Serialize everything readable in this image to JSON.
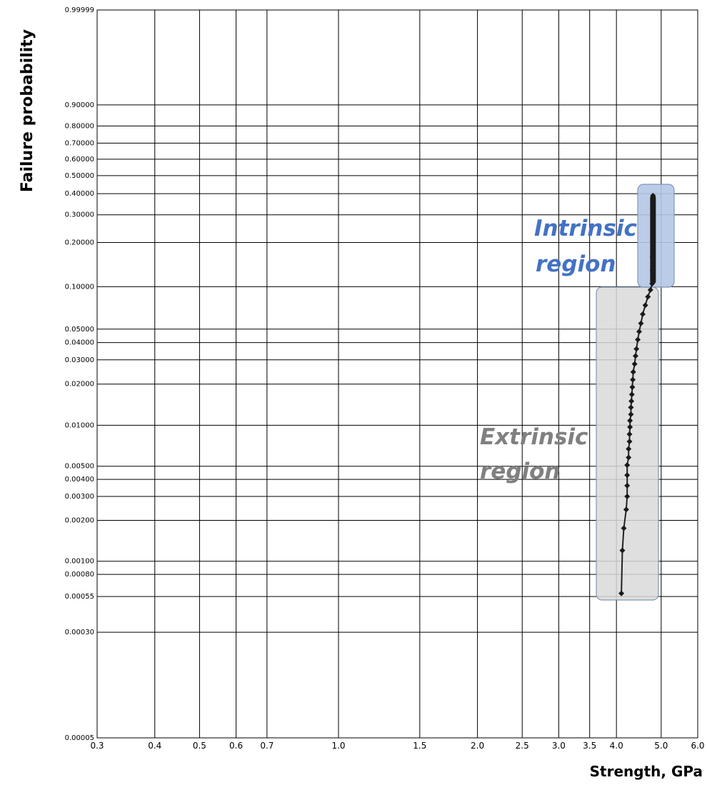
{
  "chart_data": {
    "type": "scatter",
    "xlabel": "Strength, GPa",
    "ylabel": "Failure probability",
    "x_scale": "log",
    "y_scale": "weibull",
    "xlim": [
      0.3,
      6.0
    ],
    "ylim": [
      5e-05,
      0.99999
    ],
    "grid": true,
    "x_ticks": [
      "0.3",
      "0.4",
      "0.5",
      "0.6",
      "0.7",
      "1.0",
      "1.5",
      "2.0",
      "2.5",
      "3.0",
      "3.5",
      "4.0",
      "5.0",
      "6.0"
    ],
    "y_ticks": [
      "0.99999",
      "0.90000",
      "0.80000",
      "0.70000",
      "0.60000",
      "0.50000",
      "0.40000",
      "0.30000",
      "0.20000",
      "0.10000",
      "0.05000",
      "0.04000",
      "0.03000",
      "0.02000",
      "0.01000",
      "0.00500",
      "0.00400",
      "0.00300",
      "0.00200",
      "0.00100",
      "0.00080",
      "0.00055",
      "0.00030",
      "0.00005"
    ],
    "series": [
      {
        "points": [
          [
            4.1,
            0.00058
          ],
          [
            4.12,
            0.0012
          ],
          [
            4.15,
            0.00175
          ],
          [
            4.2,
            0.0024
          ],
          [
            4.22,
            0.003
          ],
          [
            4.22,
            0.0036
          ],
          [
            4.22,
            0.0043
          ],
          [
            4.22,
            0.0051
          ],
          [
            4.25,
            0.0058
          ],
          [
            4.25,
            0.0067
          ],
          [
            4.27,
            0.0076
          ],
          [
            4.27,
            0.0086
          ],
          [
            4.28,
            0.0097
          ],
          [
            4.28,
            0.0108
          ],
          [
            4.3,
            0.012
          ],
          [
            4.3,
            0.0135
          ],
          [
            4.31,
            0.015
          ],
          [
            4.32,
            0.0168
          ],
          [
            4.33,
            0.019
          ],
          [
            4.34,
            0.0215
          ],
          [
            4.35,
            0.0245
          ],
          [
            4.38,
            0.028
          ],
          [
            4.4,
            0.032
          ],
          [
            4.42,
            0.036
          ],
          [
            4.45,
            0.042
          ],
          [
            4.48,
            0.048
          ],
          [
            4.52,
            0.055
          ],
          [
            4.56,
            0.064
          ],
          [
            4.62,
            0.074
          ],
          [
            4.68,
            0.085
          ],
          [
            4.74,
            0.095
          ],
          [
            4.78,
            0.105
          ],
          [
            4.79,
            0.13
          ],
          [
            4.79,
            0.16
          ],
          [
            4.8,
            0.2
          ],
          [
            4.8,
            0.25
          ],
          [
            4.8,
            0.3
          ],
          [
            4.8,
            0.35
          ],
          [
            4.8,
            0.39
          ]
        ]
      }
    ],
    "annotations": [
      {
        "text_lines": [
          "Intrinsic",
          "region"
        ],
        "color": "#4472c4",
        "box_color": "#b4c7e7"
      },
      {
        "text_lines": [
          "Extrinsic",
          "region"
        ],
        "color": "#808080",
        "box_color": "#d9d9d9"
      }
    ]
  }
}
